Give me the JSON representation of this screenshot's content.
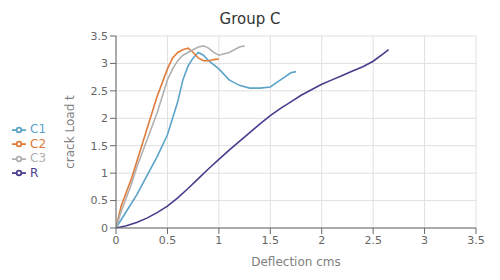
{
  "chart_data": {
    "type": "line",
    "title": "Group C",
    "xlabel": "Deflection cms",
    "ylabel": "crack Load t",
    "xlim": [
      0,
      3.5
    ],
    "ylim": [
      0,
      3.5
    ],
    "xticks": [
      0,
      0.5,
      1,
      1.5,
      2,
      2.5,
      3,
      3.5
    ],
    "yticks": [
      0,
      0.5,
      1,
      1.5,
      2,
      2.5,
      3,
      3.5
    ],
    "grid": true,
    "legend": "left",
    "series": [
      {
        "name": "C1",
        "color": "#5ba3c9",
        "x": [
          0,
          0.05,
          0.1,
          0.2,
          0.3,
          0.4,
          0.5,
          0.55,
          0.6,
          0.65,
          0.7,
          0.75,
          0.8,
          0.85,
          0.9,
          1.0,
          1.1,
          1.2,
          1.3,
          1.4,
          1.5,
          1.6,
          1.7,
          1.75
        ],
        "values": [
          0,
          0.15,
          0.3,
          0.6,
          0.95,
          1.3,
          1.7,
          2.0,
          2.3,
          2.7,
          2.95,
          3.1,
          3.2,
          3.15,
          3.05,
          2.9,
          2.7,
          2.6,
          2.55,
          2.55,
          2.57,
          2.7,
          2.83,
          2.85
        ]
      },
      {
        "name": "C2",
        "color": "#e07b39",
        "x": [
          0,
          0.05,
          0.1,
          0.15,
          0.2,
          0.25,
          0.3,
          0.35,
          0.4,
          0.45,
          0.5,
          0.55,
          0.6,
          0.65,
          0.7,
          0.75,
          0.8,
          0.85,
          0.9,
          0.95,
          1.0
        ],
        "values": [
          0,
          0.4,
          0.65,
          0.9,
          1.2,
          1.5,
          1.8,
          2.1,
          2.4,
          2.65,
          2.9,
          3.1,
          3.2,
          3.25,
          3.28,
          3.2,
          3.1,
          3.05,
          3.05,
          3.07,
          3.08
        ]
      },
      {
        "name": "C3",
        "color": "#b0b0b0",
        "x": [
          0,
          0.05,
          0.1,
          0.15,
          0.2,
          0.25,
          0.3,
          0.35,
          0.4,
          0.45,
          0.5,
          0.55,
          0.6,
          0.65,
          0.7,
          0.75,
          0.8,
          0.85,
          0.9,
          0.95,
          1.0,
          1.1,
          1.2,
          1.25
        ],
        "values": [
          0,
          0.3,
          0.55,
          0.8,
          1.1,
          1.35,
          1.6,
          1.85,
          2.1,
          2.4,
          2.7,
          2.9,
          3.05,
          3.15,
          3.2,
          3.25,
          3.3,
          3.32,
          3.28,
          3.2,
          3.15,
          3.2,
          3.3,
          3.32
        ]
      },
      {
        "name": "R",
        "color": "#4b3b8c",
        "x": [
          0,
          0.1,
          0.2,
          0.3,
          0.4,
          0.5,
          0.6,
          0.7,
          0.8,
          0.9,
          1.0,
          1.1,
          1.2,
          1.3,
          1.4,
          1.5,
          1.6,
          1.7,
          1.8,
          1.9,
          2.0,
          2.1,
          2.2,
          2.3,
          2.4,
          2.5,
          2.6,
          2.65
        ],
        "values": [
          0,
          0.04,
          0.1,
          0.18,
          0.28,
          0.4,
          0.55,
          0.72,
          0.9,
          1.08,
          1.25,
          1.42,
          1.58,
          1.74,
          1.9,
          2.05,
          2.18,
          2.3,
          2.42,
          2.52,
          2.62,
          2.7,
          2.78,
          2.86,
          2.94,
          3.04,
          3.18,
          3.25
        ]
      }
    ]
  }
}
